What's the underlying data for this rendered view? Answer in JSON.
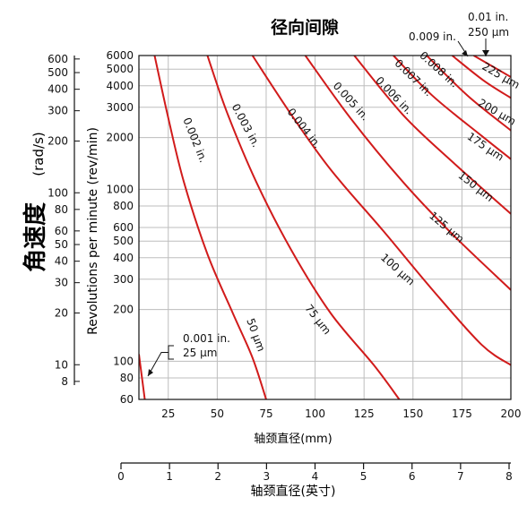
{
  "chart_data": {
    "type": "line",
    "title": "径向间隙",
    "xlabel_mm": "轴颈直径(mm)",
    "xlabel_in": "轴颈直径(英寸)",
    "ylabel_rpm": "Revolutions per minute (rev/min)",
    "ylabel_rad": "角速度",
    "ylabel_rad_unit": "(rad/s)",
    "x_mm_ticks": [
      25,
      50,
      75,
      100,
      125,
      150,
      175,
      200
    ],
    "x_in_ticks": [
      0,
      1,
      2,
      3,
      4,
      5,
      6,
      7,
      8
    ],
    "y_rpm_ticks": [
      60,
      80,
      100,
      200,
      300,
      400,
      500,
      600,
      800,
      1000,
      2000,
      3000,
      4000,
      5000,
      6000
    ],
    "y_rad_ticks": [
      8,
      10,
      20,
      30,
      40,
      50,
      60,
      80,
      100,
      200,
      300,
      400,
      500,
      600
    ],
    "xlim_mm": [
      10,
      200
    ],
    "ylim_rpm": [
      60,
      6000
    ],
    "yscale": "log",
    "grid": true,
    "colors": {
      "curve": "#d11b1b",
      "grid": "#bdbdbd"
    },
    "series": [
      {
        "name": "0.001 in.",
        "label_in": "0.001 in.",
        "label_um": "25 μm",
        "points": [
          [
            10,
            110
          ],
          [
            13,
            60
          ]
        ]
      },
      {
        "name": "0.002 in.",
        "label_in": "0.002 in.",
        "label_um": "50 μm",
        "points": [
          [
            18,
            6000
          ],
          [
            25,
            2600
          ],
          [
            33,
            1100
          ],
          [
            45,
            420
          ],
          [
            58,
            190
          ],
          [
            68,
            105
          ],
          [
            75,
            60
          ]
        ]
      },
      {
        "name": "0.003 in.",
        "label_in": "0.003 in.",
        "label_um": "75 μm",
        "points": [
          [
            45,
            6000
          ],
          [
            55,
            2800
          ],
          [
            70,
            1100
          ],
          [
            88,
            440
          ],
          [
            108,
            190
          ],
          [
            130,
            95
          ],
          [
            143,
            60
          ]
        ]
      },
      {
        "name": "0.004 in.",
        "label_in": "0.004 in.",
        "label_um": "100 μm",
        "points": [
          [
            68,
            6000
          ],
          [
            88,
            2700
          ],
          [
            108,
            1300
          ],
          [
            135,
            570
          ],
          [
            160,
            260
          ],
          [
            185,
            125
          ],
          [
            200,
            95
          ]
        ]
      },
      {
        "name": "0.005 in.",
        "label_in": "0.005 in.",
        "label_um": "125 μm",
        "points": [
          [
            95,
            6000
          ],
          [
            118,
            2600
          ],
          [
            145,
            1100
          ],
          [
            170,
            550
          ],
          [
            200,
            260
          ]
        ]
      },
      {
        "name": "0.006 in.",
        "label_in": "0.006 in.",
        "label_um": "150 μm",
        "points": [
          [
            120,
            6000
          ],
          [
            145,
            2700
          ],
          [
            170,
            1450
          ],
          [
            200,
            720
          ]
        ]
      },
      {
        "name": "0.007 in.",
        "label_in": "0.007 in.",
        "label_um": "175 μm",
        "points": [
          [
            140,
            6000
          ],
          [
            160,
            3500
          ],
          [
            185,
            2050
          ],
          [
            200,
            1500
          ]
        ]
      },
      {
        "name": "0.008 in.",
        "label_in": "0.008 in.",
        "label_um": "200 μm",
        "points": [
          [
            157,
            6000
          ],
          [
            178,
            3500
          ],
          [
            200,
            2200
          ]
        ]
      },
      {
        "name": "0.009 in.",
        "label_in": "0.009 in.",
        "label_um": "225 μm",
        "points": [
          [
            170,
            6000
          ],
          [
            186,
            4300
          ],
          [
            200,
            3400
          ]
        ]
      },
      {
        "name": "0.01 in.",
        "label_in": "0.01 in.",
        "label_um": "250 μm",
        "points": [
          [
            181,
            6000
          ],
          [
            200,
            4500
          ]
        ]
      }
    ],
    "annotations": {
      "ann_001": [
        "0.001 in.",
        "25 μm"
      ],
      "ann_009": "0.009 in.",
      "ann_010": [
        "0.01 in.",
        "250 μm"
      ]
    }
  }
}
